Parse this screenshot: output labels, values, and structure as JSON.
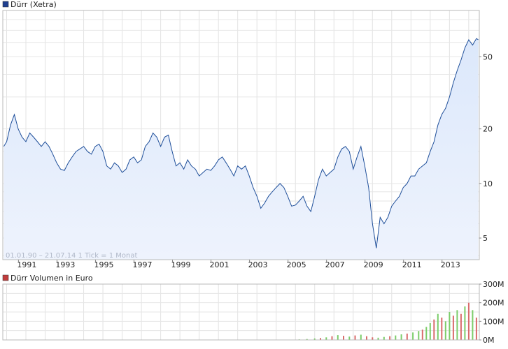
{
  "chart_data": [
    {
      "type": "area",
      "title": "Dürr (Xetra)",
      "legend_marker_color": "#1f3f8f",
      "line_color": "#1f4f9a",
      "fill_color": "#dce8fb",
      "info_text": "01.01.90 – 21.07.14   1 Tick = 1 Monat",
      "y_scale": "log",
      "ylim": [
        3.8,
        90
      ],
      "y_ticks": [
        5,
        10,
        20,
        50
      ],
      "x_range": [
        1989.8,
        2014.55
      ],
      "x_tick_labels": [
        "1991",
        "1993",
        "1995",
        "1997",
        "1999",
        "2001",
        "2003",
        "2005",
        "2007",
        "2009",
        "2011",
        "2013"
      ],
      "grid": true,
      "series": [
        {
          "x": [
            1989.85,
            1990.0,
            1990.2,
            1990.4,
            1990.6,
            1990.8,
            1991.0,
            1991.2,
            1991.4,
            1991.6,
            1991.8,
            1992.0,
            1992.2,
            1992.4,
            1992.6,
            1992.8,
            1993.0,
            1993.2,
            1993.4,
            1993.6,
            1993.8,
            1994.0,
            1994.2,
            1994.4,
            1994.6,
            1994.8,
            1995.0,
            1995.2,
            1995.4,
            1995.6,
            1995.8,
            1996.0,
            1996.2,
            1996.4,
            1996.6,
            1996.8,
            1997.0,
            1997.2,
            1997.4,
            1997.6,
            1997.8,
            1998.0,
            1998.2,
            1998.4,
            1998.6,
            1998.8,
            1999.0,
            1999.2,
            1999.4,
            1999.6,
            1999.8,
            2000.0,
            2000.2,
            2000.4,
            2000.6,
            2000.8,
            2001.0,
            2001.2,
            2001.4,
            2001.6,
            2001.8,
            2002.0,
            2002.2,
            2002.4,
            2002.6,
            2002.8,
            2003.0,
            2003.2,
            2003.4,
            2003.6,
            2003.8,
            2004.0,
            2004.2,
            2004.4,
            2004.6,
            2004.8,
            2005.0,
            2005.2,
            2005.4,
            2005.6,
            2005.8,
            2006.0,
            2006.2,
            2006.4,
            2006.6,
            2006.8,
            2007.0,
            2007.2,
            2007.4,
            2007.6,
            2007.8,
            2008.0,
            2008.2,
            2008.4,
            2008.6,
            2008.8,
            2009.0,
            2009.2,
            2009.4,
            2009.6,
            2009.8,
            2010.0,
            2010.2,
            2010.4,
            2010.6,
            2010.8,
            2011.0,
            2011.2,
            2011.4,
            2011.6,
            2011.8,
            2012.0,
            2012.2,
            2012.4,
            2012.6,
            2012.8,
            2013.0,
            2013.2,
            2013.4,
            2013.6,
            2013.8,
            2014.0,
            2014.2,
            2014.4,
            2014.5
          ],
          "y": [
            16,
            17,
            21,
            24,
            20,
            18,
            17,
            19,
            18,
            17,
            16,
            17,
            16,
            14.5,
            13,
            12,
            11.8,
            13,
            14,
            15,
            15.5,
            16,
            15,
            14.5,
            16,
            16.5,
            15,
            12.5,
            12,
            13,
            12.5,
            11.5,
            12,
            13.5,
            14,
            13,
            13.5,
            16,
            17,
            19,
            18,
            16,
            18,
            18.5,
            15,
            12.5,
            13,
            12,
            13.5,
            12.5,
            12,
            11,
            11.5,
            12,
            11.8,
            12.5,
            13.5,
            14,
            13,
            12,
            11,
            12.5,
            12,
            12.5,
            11,
            9.5,
            8.5,
            7.3,
            7.8,
            8.5,
            9,
            9.5,
            10,
            9.5,
            8.5,
            7.5,
            7.6,
            8,
            8.5,
            7.5,
            7.0,
            8.5,
            10.5,
            12,
            11,
            11.5,
            12,
            14,
            15.5,
            16,
            15,
            12,
            14,
            16,
            12.5,
            9.5,
            6,
            4.4,
            6.5,
            6,
            6.5,
            7.5,
            8,
            8.5,
            9.5,
            10,
            11,
            11,
            12,
            12.5,
            13,
            15,
            17,
            21,
            24,
            26,
            30,
            36,
            42,
            48,
            56,
            62,
            58,
            63,
            62
          ]
        }
      ]
    },
    {
      "type": "bar",
      "title": "Dürr Volumen in Euro",
      "legend_marker_color": "#c03c3c",
      "up_color": "#7ccd6a",
      "down_color": "#d96b6b",
      "ylim": [
        0,
        300
      ],
      "y_ticks": [
        0,
        100,
        200,
        300
      ],
      "y_tick_labels": [
        "0M",
        "100M",
        "200M",
        "300M"
      ],
      "x_range": [
        1989.8,
        2014.55
      ],
      "grid": true,
      "series": [
        {
          "x": [
            2005.2,
            2005.6,
            2006.0,
            2006.3,
            2006.6,
            2006.9,
            2007.2,
            2007.5,
            2007.8,
            2008.1,
            2008.4,
            2008.7,
            2009.0,
            2009.3,
            2009.6,
            2009.9,
            2010.2,
            2010.5,
            2010.8,
            2011.1,
            2011.4,
            2011.6,
            2011.8,
            2012.0,
            2012.2,
            2012.4,
            2012.6,
            2012.8,
            2013.0,
            2013.2,
            2013.4,
            2013.6,
            2013.8,
            2014.0,
            2014.2,
            2014.4
          ],
          "values": [
            3,
            5,
            8,
            10,
            14,
            20,
            26,
            22,
            18,
            24,
            28,
            20,
            14,
            12,
            16,
            20,
            24,
            30,
            34,
            40,
            48,
            55,
            70,
            90,
            110,
            140,
            120,
            100,
            150,
            130,
            160,
            140,
            180,
            200,
            160,
            120
          ],
          "direction": [
            "up",
            "up",
            "up",
            "down",
            "up",
            "down",
            "up",
            "down",
            "up",
            "down",
            "up",
            "down",
            "down",
            "up",
            "up",
            "down",
            "up",
            "up",
            "down",
            "up",
            "up",
            "down",
            "up",
            "up",
            "down",
            "up",
            "down",
            "up",
            "up",
            "down",
            "up",
            "down",
            "up",
            "down",
            "up",
            "down"
          ]
        }
      ]
    }
  ]
}
